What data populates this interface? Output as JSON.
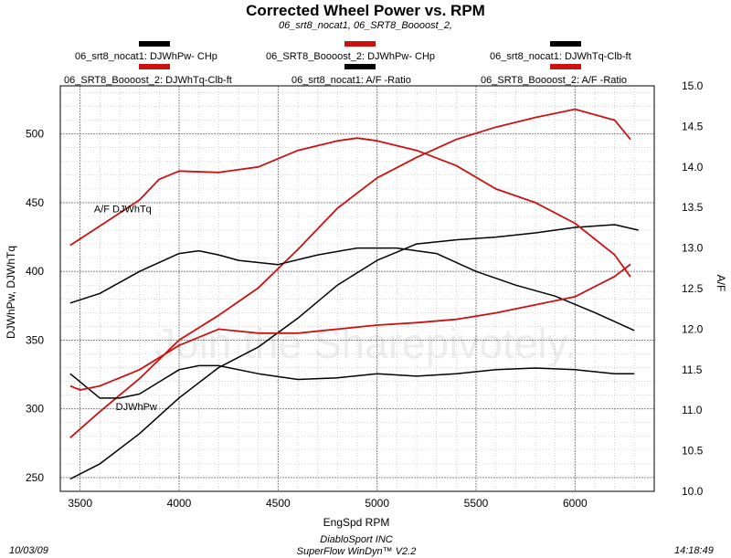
{
  "title": "Corrected Wheel Power vs. RPM",
  "subtitle": "06_srt8_nocat1, 06_SRT8_Boooost_2,",
  "legend": [
    {
      "label": "06_srt8_nocat1: DJWhPw- CHp",
      "color": "#000000"
    },
    {
      "label": "06_SRT8_Boooost_2: DJWhPw- CHp",
      "color": "#cc1111"
    },
    {
      "label": "06_srt8_nocat1: DJWhTq-Clb-ft",
      "color": "#000000"
    },
    {
      "label": "06_SRT8_Boooost_2: DJWhTq-Clb-ft",
      "color": "#cc1111"
    },
    {
      "label": "06_srt8_nocat1: A/F -Ratio",
      "color": "#000000"
    },
    {
      "label": "06_SRT8_Boooost_2: A/F -Ratio",
      "color": "#cc1111"
    }
  ],
  "footer": {
    "date": "10/03/09",
    "time": "14:18:49",
    "line1": "DiabloSport INC",
    "line2": "SuperFlow WinDyn™ V2.2"
  },
  "watermark": "Join the Sharepivotely.",
  "chart_data": {
    "type": "line",
    "xlabel": "EngSpd RPM",
    "ylabel": "DJWhPw, DJWhTq",
    "y2label": "A/F",
    "xlim": [
      3400,
      6400
    ],
    "ylim": [
      240,
      535
    ],
    "y2lim": [
      10.0,
      15.0
    ],
    "xticks": [
      3500,
      4000,
      4500,
      5000,
      5500,
      6000
    ],
    "yticks": [
      250,
      300,
      350,
      400,
      450,
      500
    ],
    "y2ticks": [
      10.0,
      10.5,
      11.0,
      11.5,
      12.0,
      12.5,
      13.0,
      13.5,
      14.0,
      14.5,
      15.0
    ],
    "grid": true,
    "annotations": [
      {
        "text": "A/F  DJWhTq",
        "x": 3570,
        "y": 443
      },
      {
        "text": "DJWhPw",
        "x": 3680,
        "y": 299
      }
    ],
    "series": [
      {
        "name": "06_srt8_nocat1: DJWhPw- CHp",
        "color": "#000000",
        "axis": "left",
        "x": [
          3450,
          3600,
          3800,
          4000,
          4200,
          4400,
          4600,
          4800,
          5000,
          5200,
          5400,
          5600,
          5800,
          6000,
          6200,
          6320
        ],
        "y": [
          249,
          260,
          282,
          308,
          330,
          345,
          366,
          390,
          408,
          420,
          423,
          425,
          428,
          432,
          434,
          430
        ]
      },
      {
        "name": "06_SRT8_Boooost_2: DJWhPw- CHp",
        "color": "#cc1111",
        "axis": "left",
        "x": [
          3450,
          3600,
          3800,
          4000,
          4200,
          4400,
          4600,
          4800,
          5000,
          5200,
          5400,
          5600,
          5800,
          6000,
          6200,
          6280
        ],
        "y": [
          279,
          298,
          322,
          350,
          368,
          388,
          416,
          446,
          468,
          483,
          496,
          505,
          512,
          518,
          510,
          496
        ]
      },
      {
        "name": "06_srt8_nocat1: DJWhTq-Clb-ft",
        "color": "#000000",
        "axis": "left",
        "x": [
          3450,
          3600,
          3800,
          4000,
          4100,
          4200,
          4300,
          4500,
          4700,
          4900,
          5100,
          5300,
          5500,
          5700,
          5900,
          6100,
          6300
        ],
        "y": [
          377,
          384,
          400,
          413,
          415,
          412,
          408,
          405,
          412,
          417,
          417,
          413,
          400,
          390,
          382,
          370,
          357
        ]
      },
      {
        "name": "06_SRT8_Boooost_2: DJWhTq-Clb-ft",
        "color": "#cc1111",
        "axis": "left",
        "x": [
          3450,
          3600,
          3800,
          3900,
          4000,
          4200,
          4400,
          4600,
          4800,
          4900,
          5000,
          5200,
          5400,
          5600,
          5800,
          6000,
          6200,
          6280
        ],
        "y": [
          419,
          433,
          452,
          467,
          473,
          472,
          476,
          488,
          495,
          497,
          495,
          488,
          477,
          460,
          450,
          435,
          412,
          396
        ]
      },
      {
        "name": "06_srt8_nocat1: A/F -Ratio",
        "color": "#000000",
        "axis": "right",
        "x": [
          3450,
          3600,
          3700,
          3800,
          3900,
          4000,
          4100,
          4200,
          4400,
          4600,
          4800,
          5000,
          5200,
          5400,
          5600,
          5800,
          6000,
          6200,
          6300
        ],
        "y2": [
          11.45,
          11.15,
          11.15,
          11.2,
          11.35,
          11.5,
          11.55,
          11.55,
          11.45,
          11.38,
          11.4,
          11.45,
          11.42,
          11.45,
          11.5,
          11.52,
          11.5,
          11.45,
          11.45
        ]
      },
      {
        "name": "06_SRT8_Boooost_2: A/F -Ratio",
        "color": "#cc1111",
        "axis": "right",
        "x": [
          3450,
          3500,
          3600,
          3800,
          4000,
          4200,
          4400,
          4600,
          4800,
          5000,
          5200,
          5400,
          5600,
          5800,
          6000,
          6200,
          6280
        ],
        "y2": [
          11.3,
          11.25,
          11.3,
          11.5,
          11.8,
          12.0,
          11.95,
          11.95,
          12.0,
          12.05,
          12.08,
          12.12,
          12.2,
          12.3,
          12.4,
          12.65,
          12.8
        ]
      }
    ]
  }
}
